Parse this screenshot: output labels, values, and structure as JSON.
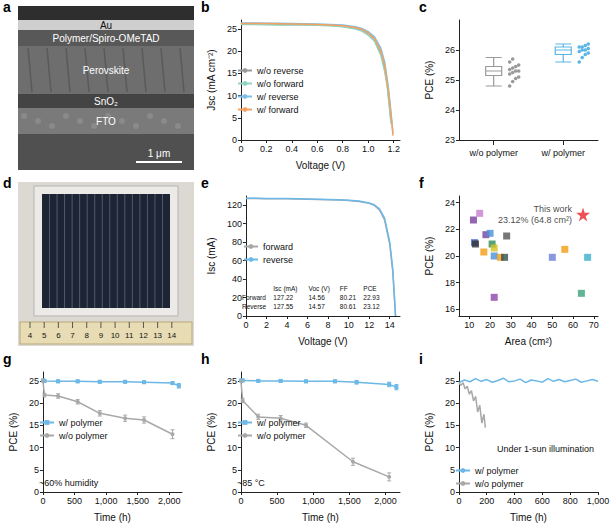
{
  "chart_data": [
    {
      "panel": "a",
      "type": "image",
      "labels": [
        "Au",
        "Polymer/Spiro-OMeTAD",
        "Perovskite",
        "SnO₂",
        "FTO"
      ],
      "scale_bar": "1 μm"
    },
    {
      "panel": "b",
      "type": "line",
      "xlabel": "Voltage (V)",
      "ylabel": "Jsc (mA cm⁻²)",
      "xlim": [
        0,
        1.25
      ],
      "xticks": [
        0,
        0.2,
        0.4,
        0.6,
        0.8,
        {
          "value": 1,
          "label": "1.0"
        },
        1.2
      ],
      "ylim": [
        0,
        27
      ],
      "yticks": [
        0,
        5,
        10,
        15,
        20,
        25
      ],
      "grid": false,
      "legend": "center left",
      "series": [
        {
          "name": "w/o reverse",
          "color": "#9a9a9a",
          "x": [
            0,
            0.1,
            0.2,
            0.3,
            0.4,
            0.5,
            0.6,
            0.7,
            0.8,
            0.9,
            0.95,
            1.0,
            1.05,
            1.1,
            1.13,
            1.15,
            1.17,
            1.18
          ],
          "values": [
            26.1,
            26.1,
            26.05,
            26.0,
            26.0,
            25.95,
            25.9,
            25.8,
            25.6,
            25.2,
            24.8,
            24.0,
            22.6,
            19.6,
            16.0,
            12.5,
            7.0,
            4.0
          ]
        },
        {
          "name": "w/o forward",
          "color": "#8fd3c1",
          "x": [
            0,
            0.1,
            0.2,
            0.3,
            0.4,
            0.5,
            0.6,
            0.7,
            0.8,
            0.9,
            0.95,
            1.0,
            1.05,
            1.1,
            1.13,
            1.15,
            1.17,
            1.18
          ],
          "values": [
            26.0,
            26.0,
            25.95,
            25.9,
            25.9,
            25.85,
            25.8,
            25.7,
            25.5,
            25.0,
            24.5,
            23.6,
            22.2,
            19.0,
            15.4,
            12.0,
            6.5,
            3.6
          ]
        },
        {
          "name": "w/ reverse",
          "color": "#7cc0ea",
          "x": [
            0,
            0.1,
            0.2,
            0.3,
            0.4,
            0.5,
            0.6,
            0.7,
            0.8,
            0.9,
            0.95,
            1.0,
            1.05,
            1.1,
            1.13,
            1.16,
            1.18,
            1.195
          ],
          "values": [
            26.3,
            26.3,
            26.25,
            26.25,
            26.2,
            26.15,
            26.1,
            26.0,
            25.85,
            25.5,
            25.1,
            24.4,
            23.2,
            20.6,
            17.5,
            11.5,
            6.0,
            1.5
          ]
        },
        {
          "name": "w/ forward",
          "color": "#f4a261",
          "x": [
            0,
            0.1,
            0.2,
            0.3,
            0.4,
            0.5,
            0.6,
            0.7,
            0.8,
            0.9,
            0.95,
            1.0,
            1.05,
            1.1,
            1.13,
            1.16,
            1.18,
            1.195
          ],
          "values": [
            26.2,
            26.2,
            26.2,
            26.15,
            26.1,
            26.05,
            26.0,
            25.9,
            25.7,
            25.3,
            24.9,
            24.1,
            22.8,
            20.0,
            16.8,
            10.8,
            5.4,
            1.0
          ]
        }
      ]
    },
    {
      "panel": "c",
      "type": "box",
      "ylabel": "PCE (%)",
      "categories": [
        "w/o polymer",
        "w/ polymer"
      ],
      "ylim": [
        23,
        27
      ],
      "yticks": [
        23,
        24,
        25,
        26
      ],
      "grid": false,
      "colors": [
        "#9a9a9a",
        "#5bb5e8"
      ],
      "boxes": [
        [
          24.8,
          25.15,
          25.3,
          25.45,
          25.75
        ],
        [
          25.6,
          25.85,
          26.0,
          26.1,
          26.2
        ]
      ],
      "points": [
        [
          24.8,
          24.95,
          25.05,
          25.1,
          25.2,
          25.25,
          25.3,
          25.3,
          25.35,
          25.4,
          25.45,
          25.5,
          25.6,
          25.7
        ],
        [
          25.6,
          25.75,
          25.85,
          25.9,
          25.95,
          26.0,
          26.0,
          26.05,
          26.1,
          26.1,
          26.15,
          26.2
        ]
      ]
    },
    {
      "panel": "d",
      "type": "image",
      "ruler": [
        4,
        5,
        6,
        7,
        8,
        9,
        10,
        11,
        12,
        13,
        14
      ]
    },
    {
      "panel": "e",
      "type": "line",
      "xlabel": "Voltage (V)",
      "ylabel": "Isc (mA)",
      "xlim": [
        0,
        15
      ],
      "xticks": [
        0,
        2,
        4,
        6,
        8,
        10,
        12,
        14
      ],
      "ylim": [
        0,
        130
      ],
      "yticks": [
        0,
        20,
        40,
        60,
        80,
        100,
        120
      ],
      "grid": false,
      "legend": "center left",
      "series": [
        {
          "name": "forward",
          "color": "#a8a8a8",
          "x": [
            0,
            1,
            2,
            3,
            4,
            5,
            6,
            7,
            8,
            9,
            10,
            11,
            12,
            12.5,
            13,
            13.5,
            14,
            14.3,
            14.56
          ],
          "values": [
            127.3,
            127.2,
            127.1,
            127.0,
            126.9,
            126.7,
            126.5,
            126.3,
            126.0,
            125.6,
            125.0,
            124.0,
            122.0,
            119.8,
            115,
            104,
            78,
            48,
            0
          ]
        },
        {
          "name": "reverse",
          "color": "#6cb8e6",
          "x": [
            0,
            1,
            2,
            3,
            4,
            5,
            6,
            7,
            8,
            9,
            10,
            11,
            12,
            12.5,
            13,
            13.5,
            14,
            14.3,
            14.57
          ],
          "values": [
            127.6,
            127.5,
            127.4,
            127.3,
            127.2,
            127.0,
            126.8,
            126.6,
            126.3,
            126.0,
            125.5,
            124.5,
            122.5,
            120.5,
            116,
            106,
            80,
            50,
            0
          ]
        }
      ],
      "table": {
        "columns": [
          "Isc (mA)",
          "Voc (V)",
          "FF",
          "PCE"
        ],
        "rows": [
          [
            "Forward",
            127.22,
            14.56,
            80.21,
            22.93
          ],
          [
            "Reverse",
            127.55,
            14.57,
            80.61,
            23.12
          ]
        ]
      }
    },
    {
      "panel": "f",
      "type": "scatter",
      "xlabel": "Area (cm²)",
      "ylabel": "PCE (%)",
      "xlim": [
        5,
        72
      ],
      "xticks": [
        10,
        20,
        30,
        40,
        50,
        60,
        70
      ],
      "ylim": [
        15.5,
        24.5
      ],
      "yticks": [
        16,
        18,
        20,
        22,
        24
      ],
      "grid": false,
      "series": [
        {
          "marker": "square",
          "x": [
            12,
            12.5,
            13,
            15,
            17,
            18,
            20,
            21,
            22,
            22,
            22,
            25,
            27,
            28,
            50,
            56,
            64,
            67
          ],
          "values": [
            22.7,
            21.0,
            20.9,
            23.2,
            20.3,
            21.6,
            21.7,
            20.9,
            20.6,
            20.0,
            16.9,
            19.9,
            19.9,
            21.5,
            19.9,
            20.5,
            17.2,
            19.9
          ],
          "colors": [
            "#7b3f9e",
            "#3a5fcd",
            "#333333",
            "#c77dce",
            "#f39c12",
            "#7b3f9e",
            "#4a90d9",
            "#2e8b57",
            "#d4c21f",
            "#4a90d9",
            "#8e44ad",
            "#f39c12",
            "#2f4f4f",
            "#555555",
            "#6a7fdb",
            "#f39c12",
            "#3aa37a",
            "#3ab0c9"
          ]
        },
        {
          "marker": "star",
          "color": "#e8262b",
          "x": [
            64.8
          ],
          "values": [
            23.12
          ],
          "annotation": [
            "This work",
            "23.12% (64.8 cm²)"
          ]
        }
      ]
    },
    {
      "panel": "g",
      "type": "line",
      "xlabel": "Time (h)",
      "ylabel": "PCE (%)",
      "xlim": [
        0,
        2200
      ],
      "xticks": [
        0,
        500,
        {
          "value": 1000,
          "label": "1,000"
        },
        {
          "value": 1500,
          "label": "1,500"
        },
        {
          "value": 2000,
          "label": "2,000"
        }
      ],
      "ylim": [
        0,
        27
      ],
      "yticks": [
        0,
        5,
        10,
        15,
        20,
        25
      ],
      "grid": false,
      "legend": "center left",
      "annotations": [
        "~60% humidity"
      ],
      "series": [
        {
          "name": "w/ polymer",
          "color": "#6cb8e6",
          "marker": "square",
          "x": [
            0,
            24,
            240,
            550,
            900,
            1300,
            1600,
            2050,
            2150
          ],
          "values": [
            25.1,
            25.0,
            24.9,
            24.9,
            24.8,
            24.8,
            24.7,
            24.5,
            23.9
          ],
          "errors": [
            0.3,
            0.3,
            0.3,
            0.3,
            0.3,
            0.3,
            0.3,
            0.3,
            0.5
          ]
        },
        {
          "name": "w/o polymer",
          "color": "#a8a8a8",
          "marker": "circle",
          "x": [
            0,
            24,
            240,
            550,
            900,
            1300,
            1600,
            2050
          ],
          "values": [
            25.0,
            21.8,
            21.6,
            20.3,
            17.7,
            16.6,
            16.2,
            13.0
          ],
          "errors": [
            0.3,
            0.4,
            0.5,
            0.5,
            0.6,
            0.7,
            0.7,
            1.0
          ]
        }
      ]
    },
    {
      "panel": "h",
      "type": "line",
      "xlabel": "Time (h)",
      "ylabel": "PCE (%)",
      "xlim": [
        0,
        2200
      ],
      "xticks": [
        0,
        500,
        {
          "value": 1000,
          "label": "1,000"
        },
        {
          "value": 1500,
          "label": "1,500"
        },
        {
          "value": 2000,
          "label": "2,000"
        }
      ],
      "ylim": [
        0,
        27
      ],
      "yticks": [
        0,
        5,
        10,
        15,
        20,
        25
      ],
      "grid": false,
      "legend": "center left",
      "annotations": [
        "~85 °C"
      ],
      "series": [
        {
          "name": "w/ polymer",
          "color": "#6cb8e6",
          "marker": "square",
          "x": [
            0,
            24,
            240,
            550,
            900,
            1300,
            1600,
            2050,
            2150
          ],
          "values": [
            25.1,
            25.1,
            25.0,
            25.0,
            24.9,
            24.9,
            24.7,
            24.2,
            23.6
          ],
          "errors": [
            0.3,
            0.3,
            0.3,
            0.3,
            0.3,
            0.3,
            0.4,
            0.5,
            0.6
          ]
        },
        {
          "name": "w/o polymer",
          "color": "#a8a8a8",
          "marker": "circle",
          "x": [
            0,
            24,
            240,
            550,
            900,
            1550,
            2050
          ],
          "values": [
            25.0,
            20.6,
            16.9,
            16.6,
            15.0,
            6.8,
            3.4
          ],
          "errors": [
            0.3,
            0.5,
            0.6,
            0.6,
            0.5,
            0.8,
            0.9
          ]
        }
      ]
    },
    {
      "panel": "i",
      "type": "line",
      "xlabel": "Time (h)",
      "ylabel": "PCE (%)",
      "xlim": [
        0,
        1000
      ],
      "xticks": [
        0,
        200,
        400,
        600,
        800,
        {
          "value": 1000,
          "label": "1,000"
        }
      ],
      "ylim": [
        0,
        27
      ],
      "yticks": [
        0,
        5,
        10,
        15,
        20,
        25
      ],
      "grid": false,
      "legend": "lower left",
      "annotations": [
        "Under 1-sun illumination"
      ],
      "series": [
        {
          "name": "w/ polymer",
          "color": "#6cb8e6",
          "x": [
            0,
            40,
            80,
            120,
            160,
            200,
            240,
            280,
            320,
            360,
            400,
            440,
            480,
            520,
            560,
            600,
            640,
            680,
            720,
            760,
            800,
            840,
            880,
            920,
            960,
            1000
          ],
          "values": [
            24.6,
            25.2,
            24.8,
            25.5,
            24.9,
            25.3,
            24.7,
            25.1,
            25.6,
            24.8,
            25.0,
            25.4,
            24.6,
            25.2,
            25.0,
            24.7,
            25.5,
            24.9,
            25.3,
            24.8,
            25.1,
            25.4,
            24.7,
            25.0,
            25.3,
            24.9
          ]
        },
        {
          "name": "w/o polymer",
          "color": "#a8a8a8",
          "x": [
            0,
            15,
            30,
            45,
            60,
            75,
            90,
            105,
            120,
            135,
            150,
            165,
            180,
            190
          ],
          "values": [
            24.5,
            24.0,
            24.6,
            23.2,
            23.8,
            22.0,
            22.8,
            20.5,
            21.5,
            18.0,
            19.5,
            15.5,
            17.5,
            14.5
          ]
        }
      ]
    }
  ]
}
